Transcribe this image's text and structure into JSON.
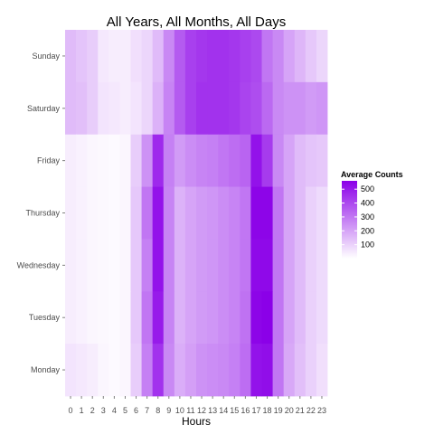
{
  "chart_data": {
    "type": "heatmap",
    "title": "All Years, All Months, All Days",
    "xlabel": "Hours",
    "ylabel": "",
    "x_categories": [
      "0",
      "1",
      "2",
      "3",
      "4",
      "5",
      "6",
      "7",
      "8",
      "9",
      "10",
      "11",
      "12",
      "13",
      "14",
      "15",
      "16",
      "17",
      "18",
      "19",
      "20",
      "21",
      "22",
      "23"
    ],
    "y_categories": [
      "Sunday",
      "Saturday",
      "Friday",
      "Thursday",
      "Wednesday",
      "Tuesday",
      "Monday"
    ],
    "value_range": [
      0,
      560
    ],
    "color_low": "#ffffff",
    "color_high": "#8b00e8",
    "legend": {
      "title": "Average Counts",
      "placement": "right",
      "breaks": [
        100,
        200,
        300,
        400,
        500
      ]
    },
    "values": [
      [
        150,
        130,
        110,
        50,
        40,
        40,
        70,
        90,
        150,
        260,
        360,
        420,
        440,
        450,
        450,
        440,
        420,
        400,
        300,
        260,
        200,
        160,
        120,
        90
      ],
      [
        150,
        140,
        110,
        60,
        50,
        40,
        60,
        90,
        170,
        270,
        360,
        420,
        450,
        450,
        450,
        440,
        410,
        390,
        330,
        260,
        240,
        240,
        220,
        230
      ],
      [
        40,
        30,
        20,
        15,
        10,
        20,
        110,
        240,
        470,
        280,
        220,
        250,
        270,
        280,
        300,
        320,
        340,
        520,
        430,
        260,
        200,
        150,
        130,
        120
      ],
      [
        40,
        30,
        20,
        15,
        10,
        20,
        120,
        300,
        520,
        270,
        170,
        200,
        220,
        230,
        250,
        270,
        300,
        550,
        550,
        300,
        200,
        150,
        100,
        80
      ],
      [
        40,
        30,
        20,
        15,
        10,
        20,
        120,
        280,
        520,
        270,
        170,
        200,
        220,
        230,
        250,
        270,
        300,
        540,
        540,
        300,
        200,
        150,
        100,
        80
      ],
      [
        40,
        30,
        20,
        15,
        10,
        20,
        120,
        300,
        500,
        270,
        170,
        200,
        220,
        230,
        250,
        270,
        310,
        550,
        560,
        300,
        200,
        150,
        100,
        80
      ],
      [
        60,
        50,
        40,
        20,
        10,
        20,
        110,
        280,
        450,
        260,
        180,
        210,
        240,
        250,
        260,
        280,
        320,
        520,
        530,
        300,
        190,
        140,
        100,
        70
      ]
    ]
  }
}
